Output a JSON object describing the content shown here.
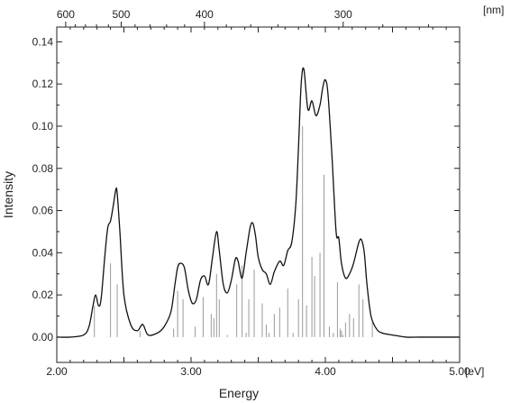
{
  "chart_data": {
    "type": "line",
    "xlabel": "Energy",
    "ylabel": "Intensity",
    "xunit_label": "[eV]",
    "top_axis_unit_label": "[nm]",
    "xlim": [
      2.0,
      5.0
    ],
    "ylim": [
      -0.012,
      0.147
    ],
    "x_ticks": [
      2.0,
      3.0,
      4.0,
      5.0
    ],
    "x_tick_labels": [
      "2.00",
      "3.00",
      "4.00",
      "5.00"
    ],
    "y_ticks": [
      0.0,
      0.02,
      0.04,
      0.06,
      0.08,
      0.1,
      0.12,
      0.14
    ],
    "y_tick_labels": [
      "0.00",
      "0.02",
      "0.04",
      "0.06",
      "0.08",
      "0.10",
      "0.12",
      "0.14"
    ],
    "top_ticks_nm": [
      600,
      500,
      400,
      300
    ],
    "top_tick_labels": [
      "600",
      "500",
      "400",
      "300"
    ],
    "grid": false,
    "legend": "none",
    "colors": {
      "curve": "#111111",
      "sticks": "#9a9a9a",
      "axes": "#222222"
    },
    "series": [
      {
        "style": "curve",
        "x": [
          2.0,
          2.1,
          2.2,
          2.24,
          2.27,
          2.29,
          2.31,
          2.33,
          2.36,
          2.38,
          2.4,
          2.42,
          2.44,
          2.45,
          2.47,
          2.5,
          2.55,
          2.6,
          2.64,
          2.68,
          2.75,
          2.8,
          2.85,
          2.88,
          2.9,
          2.92,
          2.95,
          2.98,
          3.01,
          3.04,
          3.07,
          3.1,
          3.13,
          3.16,
          3.19,
          3.21,
          3.24,
          3.27,
          3.3,
          3.33,
          3.35,
          3.38,
          3.41,
          3.44,
          3.46,
          3.48,
          3.5,
          3.53,
          3.56,
          3.59,
          3.62,
          3.66,
          3.69,
          3.72,
          3.75,
          3.78,
          3.8,
          3.82,
          3.84,
          3.87,
          3.9,
          3.93,
          3.96,
          3.98,
          4.0,
          4.02,
          4.05,
          4.08,
          4.1,
          4.12,
          4.15,
          4.18,
          4.21,
          4.25,
          4.27,
          4.29,
          4.31,
          4.34,
          4.38,
          4.42,
          4.5,
          4.6,
          4.7,
          4.8,
          4.9,
          5.0
        ],
        "values": [
          0.0,
          0.0,
          0.001,
          0.005,
          0.015,
          0.02,
          0.015,
          0.018,
          0.04,
          0.052,
          0.055,
          0.062,
          0.07,
          0.068,
          0.05,
          0.02,
          0.006,
          0.003,
          0.006,
          0.001,
          0.002,
          0.005,
          0.012,
          0.025,
          0.033,
          0.035,
          0.033,
          0.022,
          0.016,
          0.018,
          0.027,
          0.029,
          0.025,
          0.038,
          0.05,
          0.041,
          0.025,
          0.021,
          0.027,
          0.037,
          0.036,
          0.028,
          0.04,
          0.052,
          0.054,
          0.048,
          0.038,
          0.032,
          0.03,
          0.025,
          0.031,
          0.036,
          0.034,
          0.041,
          0.045,
          0.063,
          0.09,
          0.12,
          0.127,
          0.108,
          0.112,
          0.105,
          0.11,
          0.118,
          0.122,
          0.115,
          0.085,
          0.05,
          0.047,
          0.035,
          0.028,
          0.03,
          0.035,
          0.045,
          0.046,
          0.04,
          0.025,
          0.01,
          0.004,
          0.002,
          0.001,
          0.0,
          0.0,
          0.0,
          0.0,
          0.0
        ]
      },
      {
        "style": "sticks",
        "x": [
          2.28,
          2.4,
          2.45,
          2.62,
          2.87,
          2.9,
          2.94,
          3.03,
          3.09,
          3.15,
          3.17,
          3.19,
          3.21,
          3.27,
          3.34,
          3.38,
          3.41,
          3.43,
          3.47,
          3.53,
          3.56,
          3.58,
          3.62,
          3.66,
          3.72,
          3.76,
          3.8,
          3.83,
          3.86,
          3.9,
          3.92,
          3.96,
          3.99,
          4.03,
          4.06,
          4.09,
          4.11,
          4.12,
          4.13,
          4.15,
          4.18,
          4.21,
          4.25,
          4.28,
          4.35
        ],
        "values": [
          0.015,
          0.035,
          0.025,
          0.003,
          0.004,
          0.022,
          0.018,
          0.005,
          0.019,
          0.011,
          0.009,
          0.03,
          0.018,
          0.001,
          0.025,
          0.034,
          0.002,
          0.018,
          0.032,
          0.016,
          0.006,
          0.002,
          0.011,
          0.014,
          0.023,
          0.002,
          0.018,
          0.1,
          0.015,
          0.038,
          0.029,
          0.04,
          0.077,
          0.005,
          0.002,
          0.026,
          0.004,
          0.003,
          0.001,
          0.007,
          0.011,
          0.009,
          0.025,
          0.018,
          0.007
        ]
      }
    ]
  }
}
